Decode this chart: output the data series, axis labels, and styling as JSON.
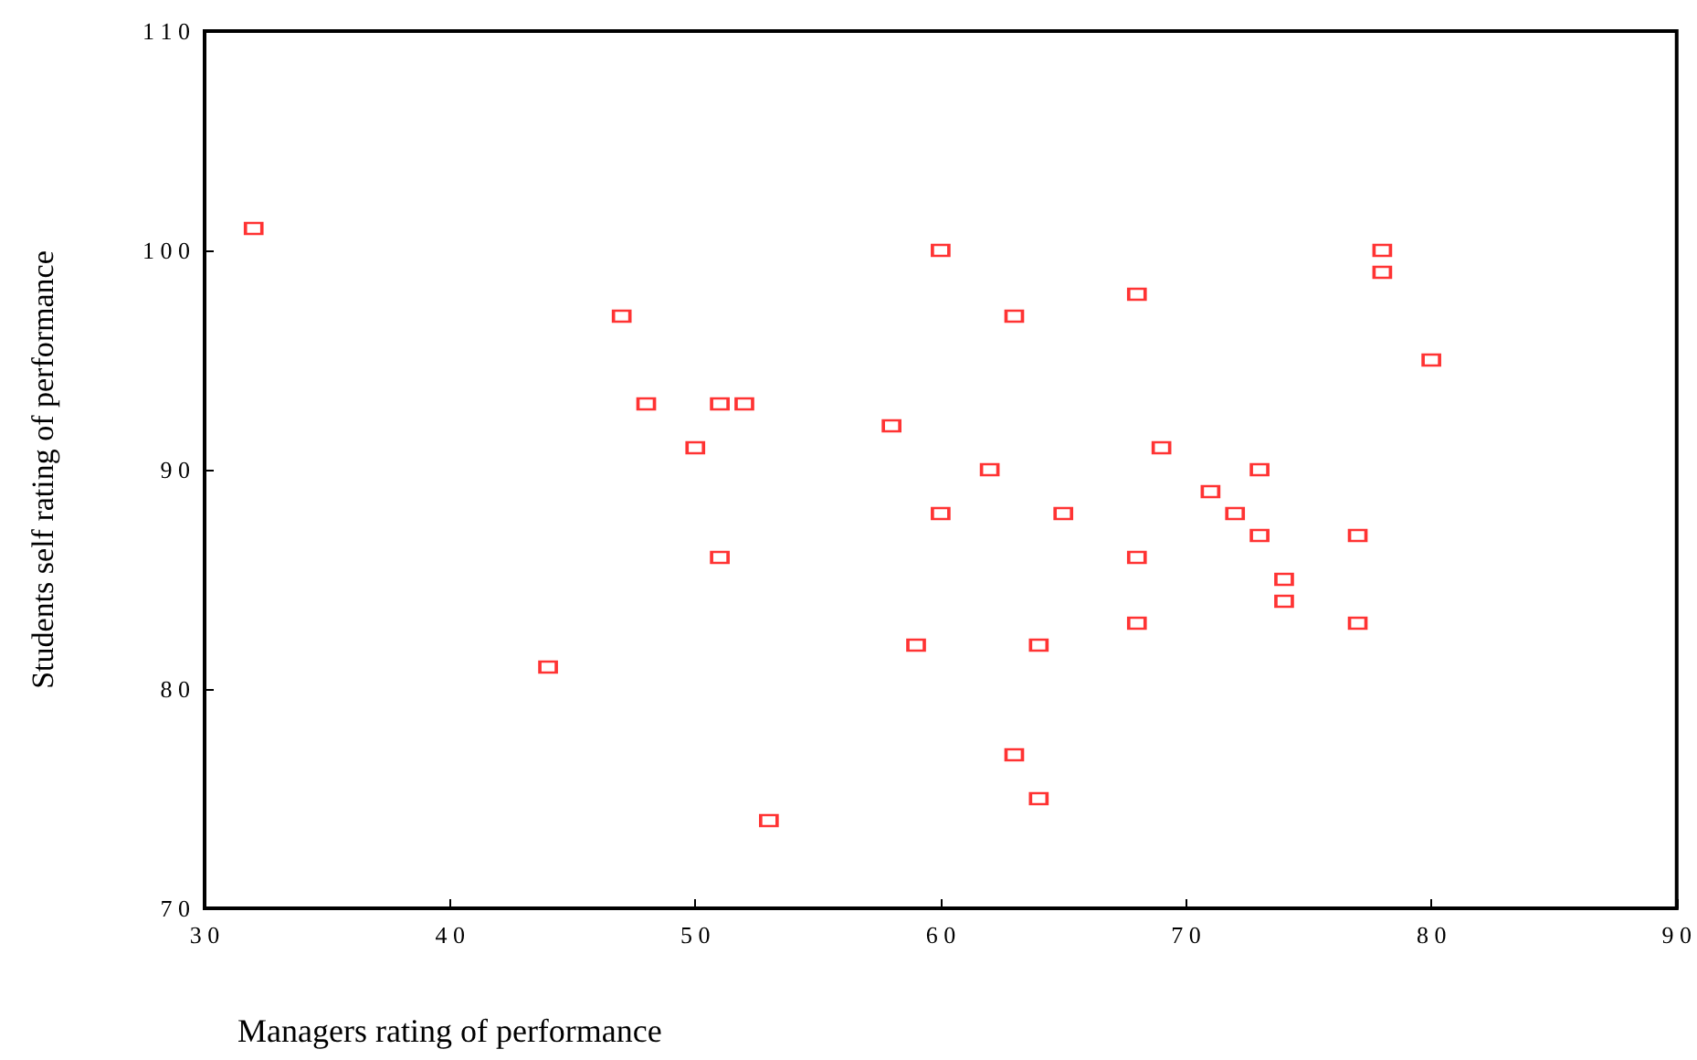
{
  "chart_data": {
    "type": "scatter",
    "xlabel": "Managers rating of performance",
    "ylabel": "Students self rating of performance",
    "x": [
      32,
      47,
      48,
      50,
      51,
      52,
      51,
      44,
      53,
      58,
      59,
      60,
      60,
      62,
      63,
      63,
      64,
      64,
      65,
      68,
      68,
      68,
      69,
      71,
      72,
      73,
      73,
      74,
      74,
      77,
      77,
      78,
      78,
      80
    ],
    "values": [
      101,
      97,
      93,
      91,
      93,
      93,
      86,
      81,
      74,
      92,
      82,
      100,
      88,
      90,
      97,
      77,
      82,
      75,
      88,
      98,
      86,
      83,
      91,
      89,
      88,
      90,
      87,
      85,
      84,
      87,
      83,
      100,
      99,
      95
    ],
    "color": "#ff0000",
    "marker": "square",
    "grid": false,
    "xlim": [
      30,
      90
    ],
    "xticks": [
      30,
      40,
      50,
      60,
      70,
      80,
      90
    ],
    "ylim": [
      70,
      110
    ],
    "yticks": [
      70,
      80,
      90,
      100,
      110
    ]
  }
}
